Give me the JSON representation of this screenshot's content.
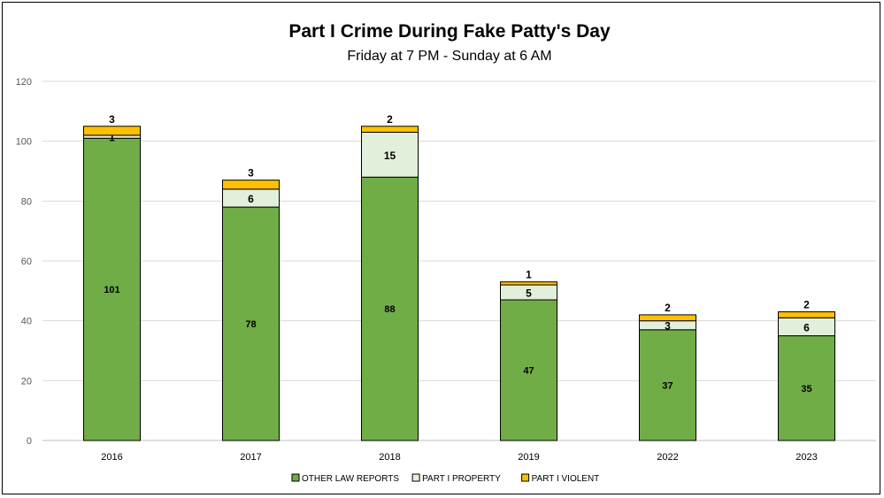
{
  "chart_data": {
    "type": "bar",
    "stacked": true,
    "title": "Part I Crime During Fake Patty's Day",
    "subtitle": "Friday at 7 PM - Sunday at 6 AM",
    "categories": [
      "2016",
      "2017",
      "2018",
      "2019",
      "2022",
      "2023"
    ],
    "series": [
      {
        "name": "OTHER LAW REPORTS",
        "values": [
          101,
          78,
          88,
          47,
          37,
          35
        ],
        "color": "#70AD47"
      },
      {
        "name": "PART I PROPERTY",
        "values": [
          1,
          6,
          15,
          5,
          3,
          6
        ],
        "color": "#E2EFDA"
      },
      {
        "name": "PART I VIOLENT",
        "values": [
          3,
          3,
          2,
          1,
          2,
          2
        ],
        "color": "#FFC000"
      }
    ],
    "ylim": [
      0,
      120
    ],
    "yticks": [
      0,
      20,
      40,
      60,
      80,
      100,
      120
    ],
    "grid": true,
    "legend": "bottom"
  }
}
